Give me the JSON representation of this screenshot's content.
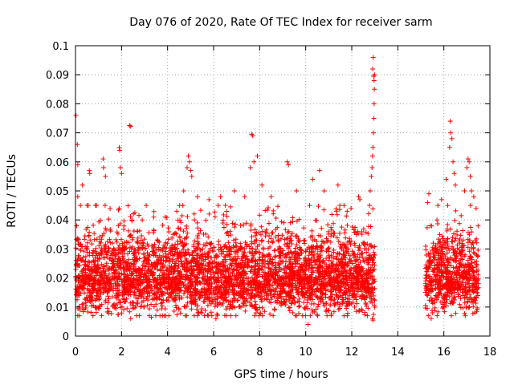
{
  "chart_data": {
    "type": "scatter",
    "title": "Day 076 of 2020, Rate Of TEC Index for receiver sarm",
    "xlabel": "GPS time / hours",
    "ylabel": "ROTI / TECUs",
    "xlim": [
      0,
      18
    ],
    "ylim": [
      0,
      0.1
    ],
    "xticks": [
      0,
      2,
      4,
      6,
      8,
      10,
      12,
      14,
      16,
      18
    ],
    "yticks": [
      0,
      0.01,
      0.02,
      0.03,
      0.04,
      0.05,
      0.06,
      0.07,
      0.08,
      0.09,
      0.1
    ],
    "xtick_labels": [
      "0",
      "2",
      "4",
      "6",
      "8",
      "10",
      "12",
      "14",
      "16",
      "18"
    ],
    "ytick_labels": [
      "0",
      "0.01",
      "0.02",
      "0.03",
      "0.04",
      "0.05",
      "0.06",
      "0.07",
      "0.08",
      "0.09",
      "0.1"
    ],
    "grid": true,
    "marker": "plus",
    "color": "#ff0000",
    "data_gap_hours": [
      13.0,
      15.2
    ],
    "series": [
      {
        "points": [
          [
            0.02,
            0.076
          ],
          [
            0.08,
            0.066
          ],
          [
            0.1,
            0.059
          ],
          [
            0.05,
            0.038
          ],
          [
            0.1,
            0.048
          ],
          [
            0.3,
            0.052
          ],
          [
            0.5,
            0.045
          ],
          [
            0.6,
            0.057
          ],
          [
            0.62,
            0.056
          ],
          [
            1.2,
            0.061
          ],
          [
            1.22,
            0.058
          ],
          [
            1.3,
            0.055
          ],
          [
            1.9,
            0.065
          ],
          [
            1.92,
            0.064
          ],
          [
            1.95,
            0.058
          ],
          [
            2.0,
            0.056
          ],
          [
            2.35,
            0.0725
          ],
          [
            2.4,
            0.0722
          ],
          [
            2.45,
            0.04
          ],
          [
            2.9,
            0.04
          ],
          [
            3.4,
            0.041
          ],
          [
            4.4,
            0.043
          ],
          [
            4.7,
            0.05
          ],
          [
            4.85,
            0.058
          ],
          [
            4.9,
            0.062
          ],
          [
            4.95,
            0.06
          ],
          [
            5.0,
            0.057
          ],
          [
            5.05,
            0.055
          ],
          [
            5.3,
            0.048
          ],
          [
            5.8,
            0.047
          ],
          [
            6.3,
            0.048
          ],
          [
            6.9,
            0.05
          ],
          [
            7.35,
            0.048
          ],
          [
            7.6,
            0.058
          ],
          [
            7.65,
            0.0695
          ],
          [
            7.7,
            0.069
          ],
          [
            7.75,
            0.06
          ],
          [
            7.9,
            0.062
          ],
          [
            8.1,
            0.052
          ],
          [
            8.5,
            0.048
          ],
          [
            9.2,
            0.06
          ],
          [
            9.25,
            0.059
          ],
          [
            9.6,
            0.05
          ],
          [
            10.3,
            0.054
          ],
          [
            10.6,
            0.057
          ],
          [
            10.8,
            0.05
          ],
          [
            11.4,
            0.052
          ],
          [
            11.8,
            0.043
          ],
          [
            12.3,
            0.048
          ],
          [
            12.35,
            0.047
          ],
          [
            12.8,
            0.05
          ],
          [
            12.85,
            0.055
          ],
          [
            12.88,
            0.058
          ],
          [
            12.9,
            0.062
          ],
          [
            12.92,
            0.065
          ],
          [
            12.94,
            0.07
          ],
          [
            12.96,
            0.075
          ],
          [
            12.97,
            0.08
          ],
          [
            12.98,
            0.085
          ],
          [
            12.99,
            0.09
          ],
          [
            12.95,
            0.0895
          ],
          [
            12.93,
            0.096
          ],
          [
            12.91,
            0.092
          ],
          [
            12.97,
            0.088
          ],
          [
            12.9,
            0.006
          ],
          [
            12.92,
            0.0055
          ],
          [
            10.1,
            0.004
          ],
          [
            6.1,
            0.006
          ],
          [
            3.3,
            0.0065
          ],
          [
            2.4,
            0.006
          ],
          [
            0.2,
            0.009
          ],
          [
            15.3,
            0.046
          ],
          [
            15.35,
            0.049
          ],
          [
            15.4,
            0.038
          ],
          [
            15.5,
            0.008
          ],
          [
            15.9,
            0.047
          ],
          [
            16.1,
            0.054
          ],
          [
            16.25,
            0.065
          ],
          [
            16.28,
            0.074
          ],
          [
            16.3,
            0.07
          ],
          [
            16.35,
            0.068
          ],
          [
            16.4,
            0.06
          ],
          [
            16.45,
            0.056
          ],
          [
            16.9,
            0.05
          ],
          [
            17.0,
            0.058
          ],
          [
            17.05,
            0.061
          ],
          [
            17.1,
            0.06
          ],
          [
            17.15,
            0.055
          ],
          [
            17.2,
            0.05
          ],
          [
            17.3,
            0.048
          ],
          [
            17.4,
            0.044
          ],
          [
            16.5,
            0.052
          ],
          [
            15.7,
            0.04
          ],
          [
            17.35,
            0.008
          ],
          [
            15.45,
            0.006
          ]
        ]
      }
    ]
  }
}
